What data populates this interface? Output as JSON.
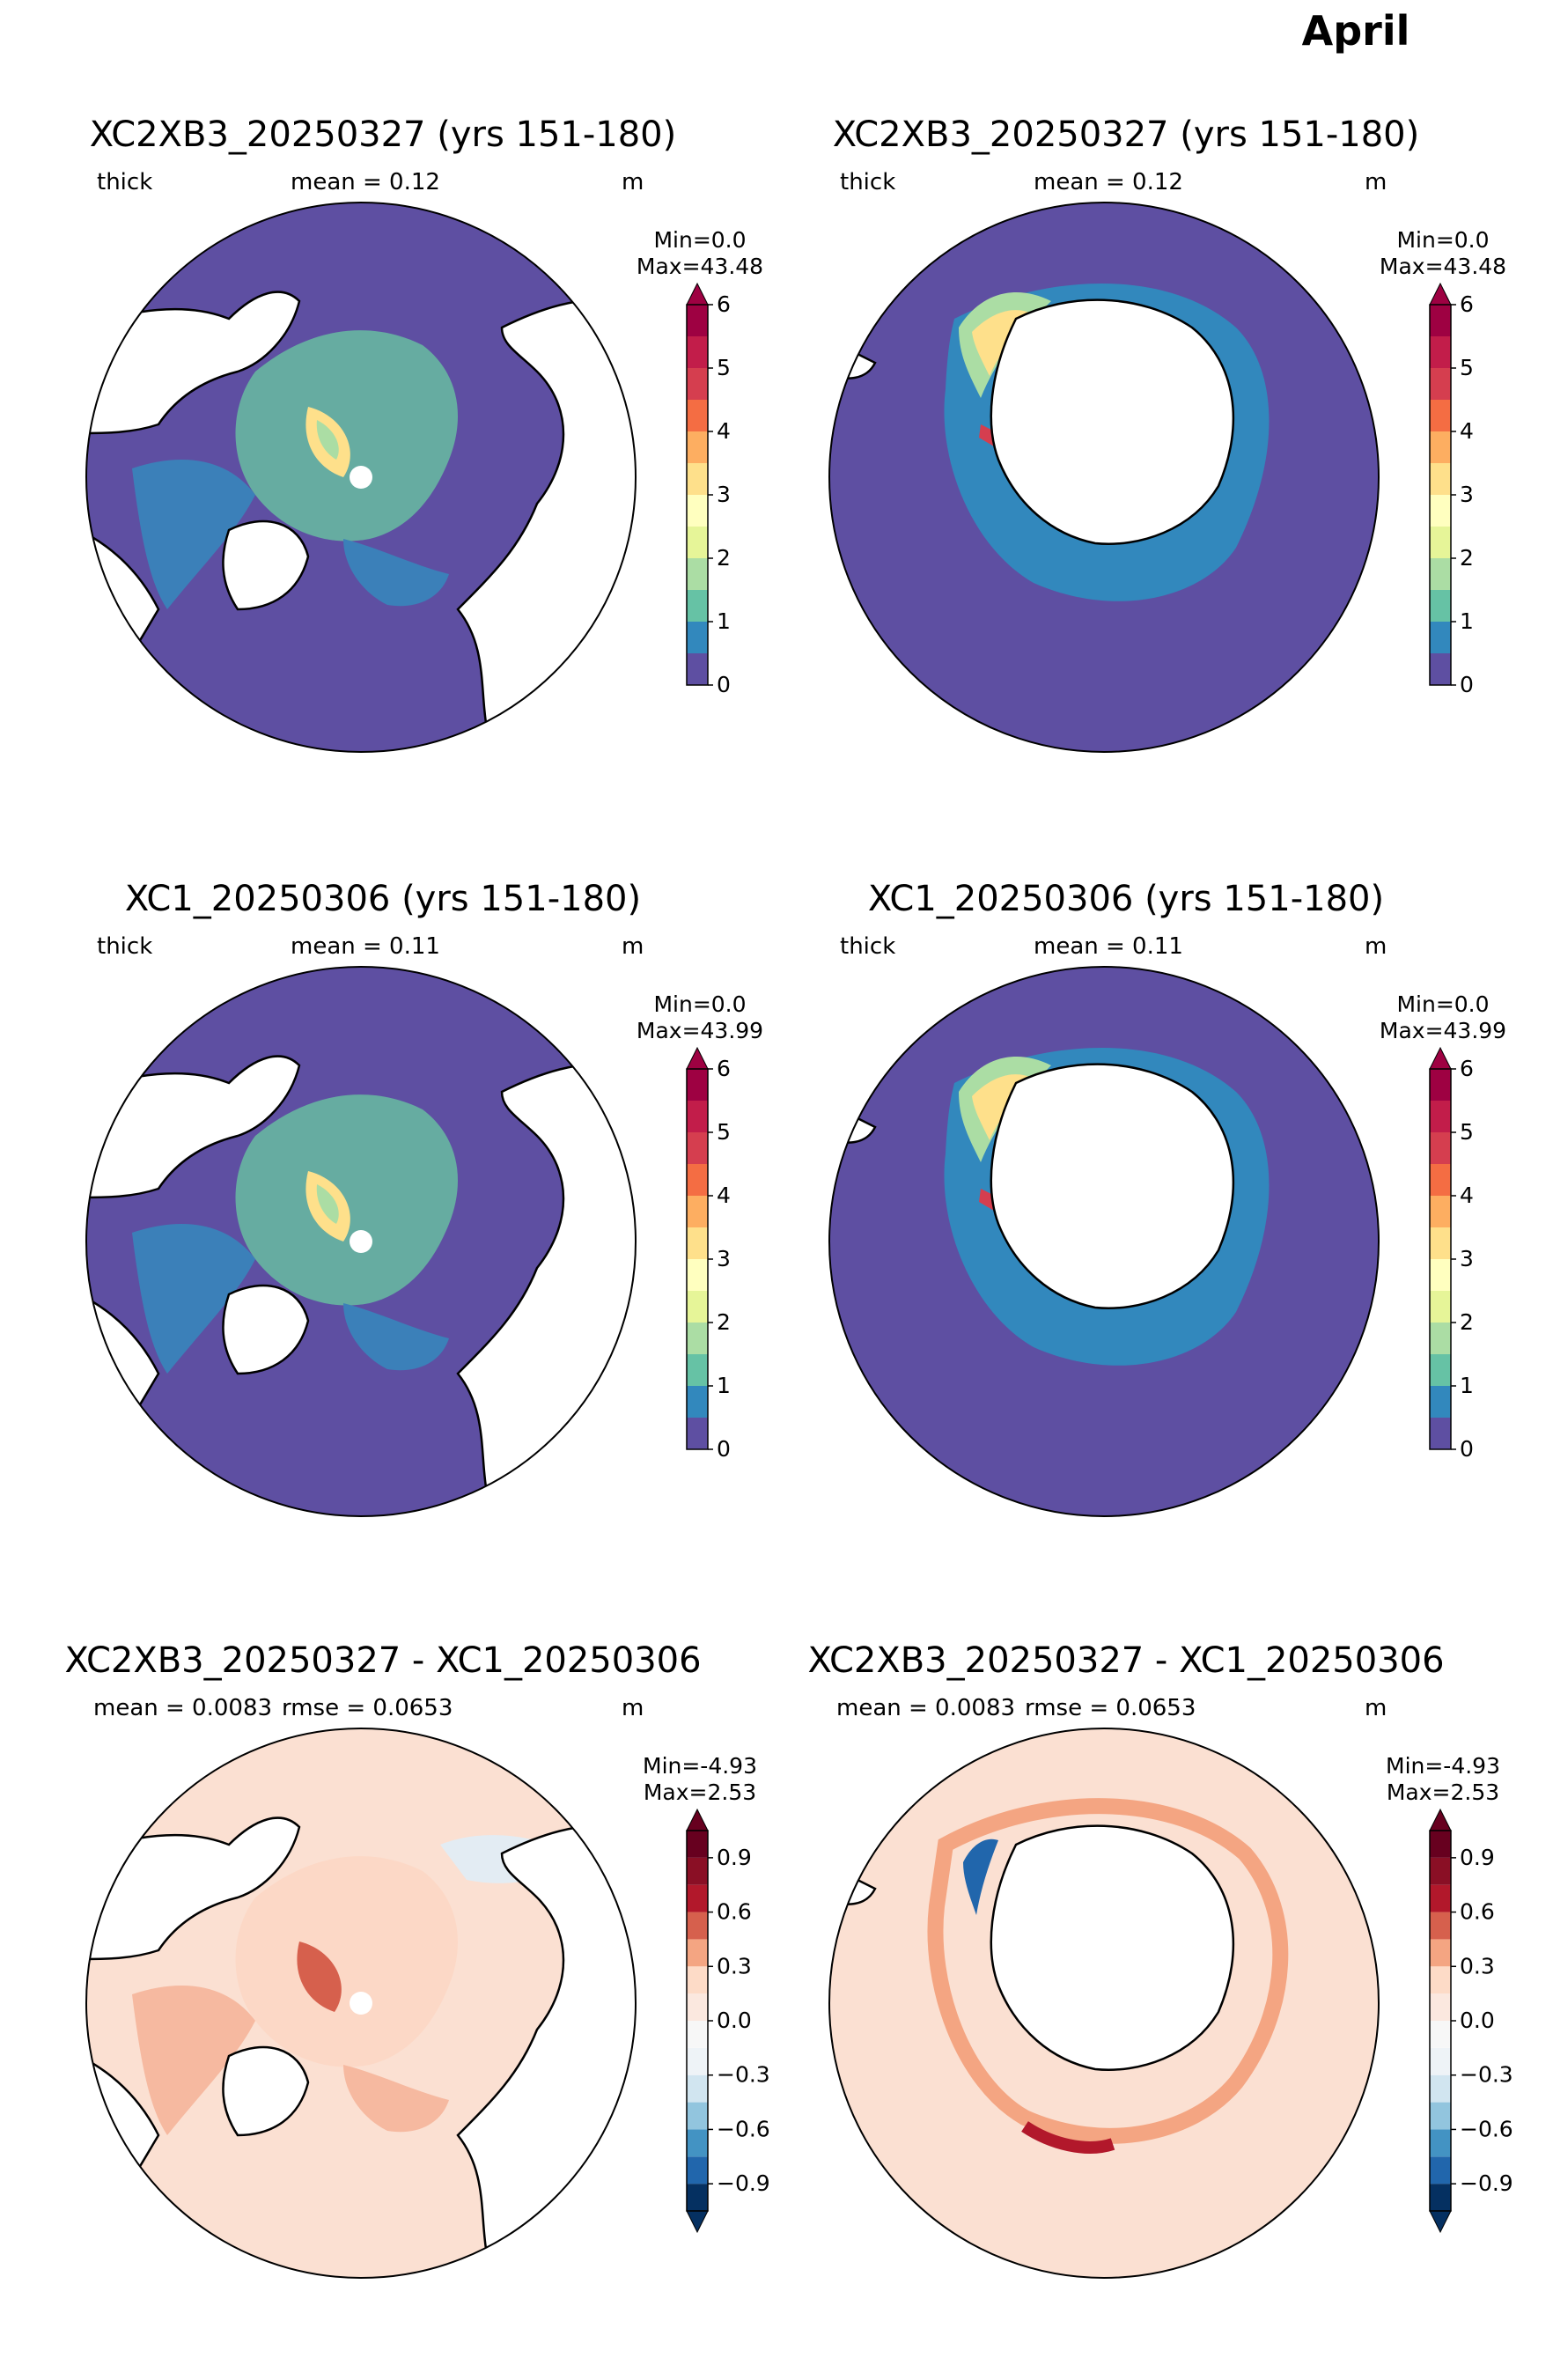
{
  "suptitle": "April",
  "chart_data": [
    {
      "type": "heatmap",
      "projection": "north-polar-stereographic",
      "title": "XC2XB3_20250327 (yrs 151-180)",
      "variable": "thick",
      "stat_text": "mean = 0.12",
      "extra_text": "",
      "units": "m",
      "min_text": "Min=0.0",
      "max_text": "Max=43.48",
      "colormap": "Spectral_r",
      "levels": [
        0,
        0.5,
        1,
        1.5,
        2,
        2.5,
        3,
        3.5,
        4,
        4.5,
        5,
        5.5,
        6
      ],
      "colorbar_ticks": [
        "0",
        "1",
        "2",
        "3",
        "4",
        "5",
        "6"
      ],
      "extend": "max"
    },
    {
      "type": "heatmap",
      "projection": "south-polar-stereographic",
      "title": "XC2XB3_20250327 (yrs 151-180)",
      "variable": "thick",
      "stat_text": "mean = 0.12",
      "extra_text": "",
      "units": "m",
      "min_text": "Min=0.0",
      "max_text": "Max=43.48",
      "colormap": "Spectral_r",
      "levels": [
        0,
        0.5,
        1,
        1.5,
        2,
        2.5,
        3,
        3.5,
        4,
        4.5,
        5,
        5.5,
        6
      ],
      "colorbar_ticks": [
        "0",
        "1",
        "2",
        "3",
        "4",
        "5",
        "6"
      ],
      "extend": "max"
    },
    {
      "type": "heatmap",
      "projection": "north-polar-stereographic",
      "title": "XC1_20250306 (yrs 151-180)",
      "variable": "thick",
      "stat_text": "mean = 0.11",
      "extra_text": "",
      "units": "m",
      "min_text": "Min=0.0",
      "max_text": "Max=43.99",
      "colormap": "Spectral_r",
      "levels": [
        0,
        0.5,
        1,
        1.5,
        2,
        2.5,
        3,
        3.5,
        4,
        4.5,
        5,
        5.5,
        6
      ],
      "colorbar_ticks": [
        "0",
        "1",
        "2",
        "3",
        "4",
        "5",
        "6"
      ],
      "extend": "max"
    },
    {
      "type": "heatmap",
      "projection": "south-polar-stereographic",
      "title": "XC1_20250306 (yrs 151-180)",
      "variable": "thick",
      "stat_text": "mean = 0.11",
      "extra_text": "",
      "units": "m",
      "min_text": "Min=0.0",
      "max_text": "Max=43.99",
      "colormap": "Spectral_r",
      "levels": [
        0,
        0.5,
        1,
        1.5,
        2,
        2.5,
        3,
        3.5,
        4,
        4.5,
        5,
        5.5,
        6
      ],
      "colorbar_ticks": [
        "0",
        "1",
        "2",
        "3",
        "4",
        "5",
        "6"
      ],
      "extend": "max"
    },
    {
      "type": "heatmap",
      "projection": "north-polar-stereographic",
      "title": "XC2XB3_20250327 - XC1_20250306",
      "variable": "",
      "stat_text": "mean = 0.0083",
      "extra_text": "rmse = 0.0653",
      "units": "m",
      "min_text": "Min=-4.93",
      "max_text": "Max=2.53",
      "colormap": "RdBu_r",
      "levels": [
        -1.05,
        -0.9,
        -0.75,
        -0.6,
        -0.45,
        -0.3,
        -0.15,
        0,
        0.15,
        0.3,
        0.45,
        0.6,
        0.75,
        0.9,
        1.05
      ],
      "colorbar_ticks": [
        "−0.9",
        "−0.6",
        "−0.3",
        "0.0",
        "0.3",
        "0.6",
        "0.9"
      ],
      "extend": "both"
    },
    {
      "type": "heatmap",
      "projection": "south-polar-stereographic",
      "title": "XC2XB3_20250327 - XC1_20250306",
      "variable": "",
      "stat_text": "mean = 0.0083",
      "extra_text": "rmse = 0.0653",
      "units": "m",
      "min_text": "Min=-4.93",
      "max_text": "Max=2.53",
      "colormap": "RdBu_r",
      "levels": [
        -1.05,
        -0.9,
        -0.75,
        -0.6,
        -0.45,
        -0.3,
        -0.15,
        0,
        0.15,
        0.3,
        0.45,
        0.6,
        0.75,
        0.9,
        1.05
      ],
      "colorbar_ticks": [
        "−0.9",
        "−0.6",
        "−0.3",
        "0.0",
        "0.3",
        "0.6",
        "0.9"
      ],
      "extend": "both"
    }
  ]
}
